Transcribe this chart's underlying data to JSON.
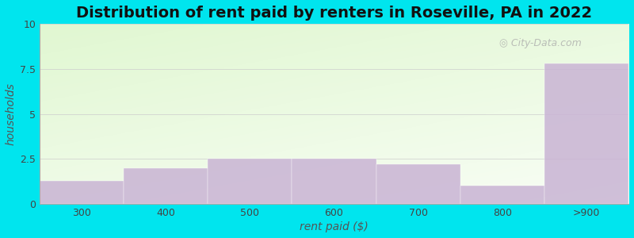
{
  "categories": [
    "300",
    "400",
    "500",
    "600",
    "700",
    "800",
    ">900"
  ],
  "values": [
    1.3,
    2.0,
    2.5,
    2.5,
    2.2,
    1.0,
    7.8
  ],
  "bar_color": "#C9B4D4",
  "bar_edgecolor": "#C9B4D4",
  "title": "Distribution of rent paid by renters in Roseville, PA in 2022",
  "xlabel": "rent paid ($)",
  "ylabel": "households",
  "ylim": [
    0,
    10
  ],
  "yticks": [
    0,
    2.5,
    5.0,
    7.5,
    10.0
  ],
  "title_fontsize": 14,
  "label_fontsize": 10,
  "fig_bg_color": "#00E5EE",
  "watermark": "City-Data.com",
  "watermark_icon": "◎"
}
